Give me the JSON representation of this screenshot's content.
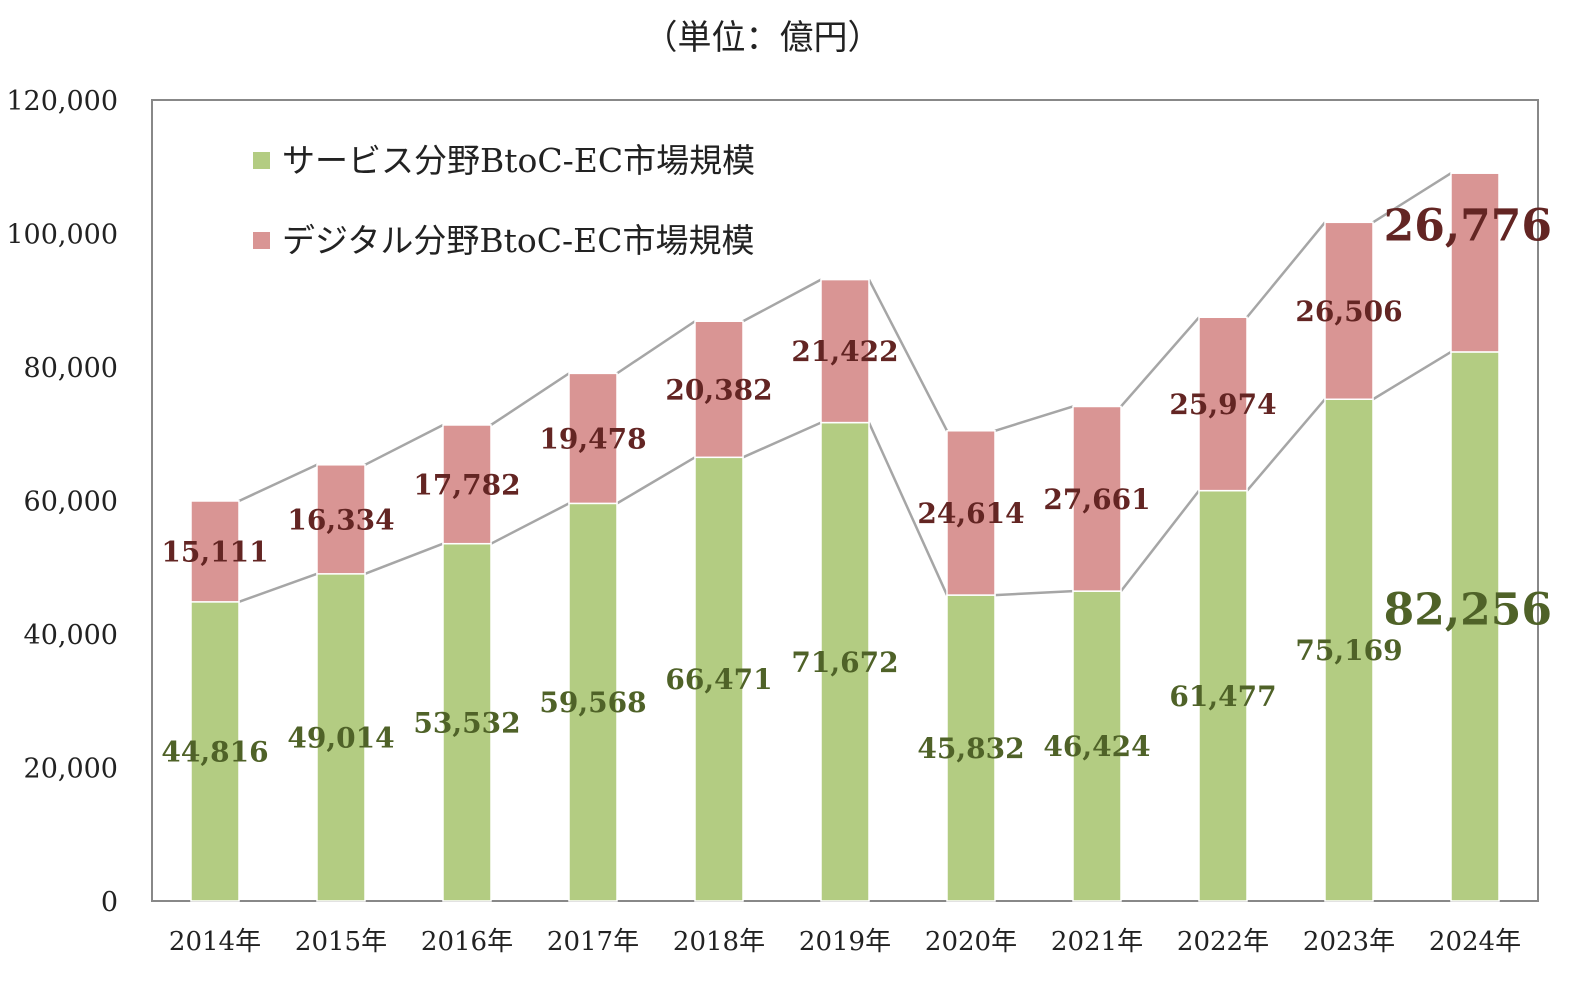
{
  "chart_data": {
    "type": "bar",
    "stacked": true,
    "unit_label": "（単位：億円）",
    "categories": [
      "2014年",
      "2015年",
      "2016年",
      "2017年",
      "2018年",
      "2019年",
      "2020年",
      "2021年",
      "2022年",
      "2023年",
      "2024年"
    ],
    "series": [
      {
        "name": "サービス分野BtoC-EC市場規模",
        "color": "#b3cc82",
        "label_color": "#4f6228",
        "values": [
          44816,
          49014,
          53532,
          59568,
          66471,
          71672,
          45832,
          46424,
          61477,
          75169,
          82256
        ],
        "labels": [
          "44,816",
          "49,014",
          "53,532",
          "59,568",
          "66,471",
          "71,672",
          "45,832",
          "46,424",
          "61,477",
          "75,169",
          "82,256"
        ]
      },
      {
        "name": "デジタル分野BtoC-EC市場規模",
        "color": "#d99594",
        "label_color": "#632523",
        "values": [
          15111,
          16334,
          17782,
          19478,
          20382,
          21422,
          24614,
          27661,
          25974,
          26506,
          26776
        ],
        "labels": [
          "15,111",
          "16,334",
          "17,782",
          "19,478",
          "20,382",
          "21,422",
          "24,614",
          "27,661",
          "25,974",
          "26,506",
          "26,776"
        ]
      }
    ],
    "ylim": [
      0,
      120000
    ],
    "yticks": [
      "0",
      "20,000",
      "40,000",
      "60,000",
      "80,000",
      "100,000",
      "120,000"
    ],
    "ytick_values": [
      0,
      20000,
      40000,
      60000,
      80000,
      100000,
      120000
    ],
    "grid": false,
    "series_lines": true,
    "legend_position": "top-left",
    "highlight_last": true
  }
}
